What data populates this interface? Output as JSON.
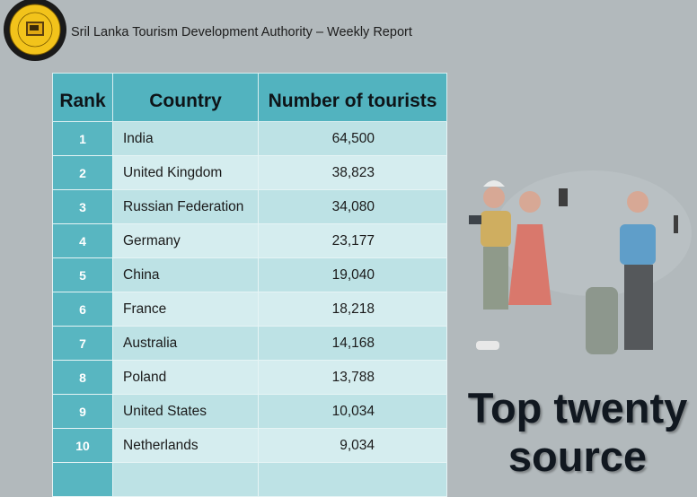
{
  "header": {
    "logo_text": "Sri Lanka Tourism Development Authority",
    "title": "Sril Lanka Tourism Development Authority – Weekly Report"
  },
  "table": {
    "columns": [
      "Rank",
      "Country",
      "Number of tourists"
    ],
    "rows": [
      {
        "rank": "1",
        "country": "India",
        "tourists": "64,500"
      },
      {
        "rank": "2",
        "country": "United Kingdom",
        "tourists": "38,823"
      },
      {
        "rank": "3",
        "country": "Russian Federation",
        "tourists": "34,080"
      },
      {
        "rank": "4",
        "country": "Germany",
        "tourists": "23,177"
      },
      {
        "rank": "5",
        "country": "China",
        "tourists": "19,040"
      },
      {
        "rank": "6",
        "country": "France",
        "tourists": "18,218"
      },
      {
        "rank": "7",
        "country": "Australia",
        "tourists": "14,168"
      },
      {
        "rank": "8",
        "country": "Poland",
        "tourists": "13,788"
      },
      {
        "rank": "9",
        "country": "United States",
        "tourists": "10,034"
      },
      {
        "rank": "10",
        "country": "Netherlands",
        "tourists": "9,034"
      },
      {
        "rank": "",
        "country": "",
        "tourists": ""
      }
    ]
  },
  "side": {
    "illustration": "travelers-illustration",
    "headline_line1": "Top twenty",
    "headline_line2": "source"
  },
  "colors": {
    "background": "#b2b9bc",
    "header_teal": "#52b3bf",
    "row_light": "#d5edef",
    "row_mid": "#bde2e5"
  }
}
